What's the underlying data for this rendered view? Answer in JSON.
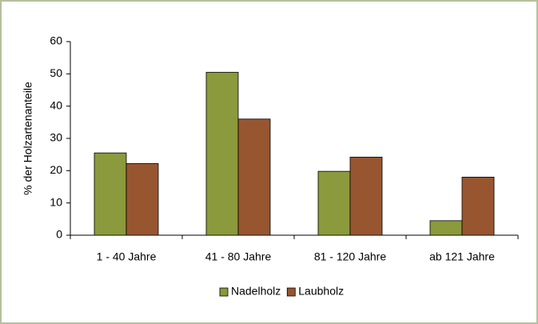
{
  "chart_data": {
    "type": "bar",
    "y_label": "% der Holzartenanteile",
    "categories": [
      "1 - 40 Jahre",
      "41 - 80 Jahre",
      "81 - 120 Jahre",
      "ab 121 Jahre"
    ],
    "series": [
      {
        "name": "Nadelholz",
        "color": "#8a9a3c",
        "values": [
          25.5,
          50.5,
          19.8,
          4.5
        ]
      },
      {
        "name": "Laubholz",
        "color": "#985630",
        "values": [
          22.2,
          36,
          24.2,
          18
        ]
      }
    ],
    "ylim": [
      0,
      60
    ],
    "yticks": [
      0,
      10,
      20,
      30,
      40,
      50,
      60
    ],
    "grid": false,
    "legend": "bottom"
  }
}
